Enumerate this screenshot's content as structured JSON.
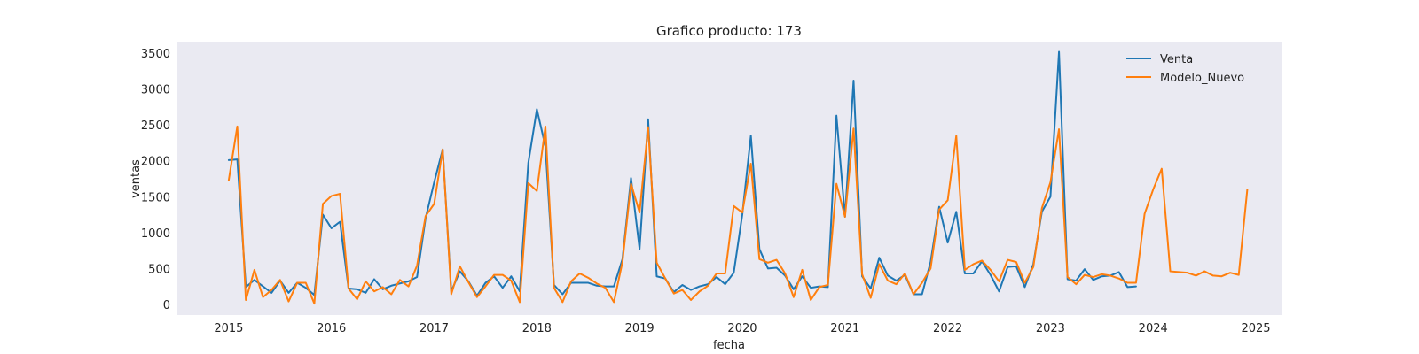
{
  "chart_data": {
    "type": "line",
    "title": "Grafico producto: 173",
    "xlabel": "fecha",
    "ylabel": "ventas",
    "xlim": [
      "2014-07-01",
      "2025-04-01"
    ],
    "ylim": [
      -150,
      3650
    ],
    "x_ticks": [
      "2015",
      "2016",
      "2017",
      "2018",
      "2019",
      "2020",
      "2021",
      "2022",
      "2023",
      "2024",
      "2025"
    ],
    "y_ticks": [
      0,
      500,
      1000,
      1500,
      2000,
      2500,
      3000,
      3500
    ],
    "legend_position": "top-right",
    "grid": false,
    "background": "#eaeaf2",
    "series": [
      {
        "name": "Venta",
        "color": "#1f77b4",
        "start": "2015-01",
        "values": [
          2010,
          2020,
          240,
          340,
          250,
          160,
          330,
          160,
          300,
          230,
          130,
          1250,
          1060,
          1150,
          220,
          210,
          160,
          350,
          210,
          260,
          290,
          320,
          380,
          1200,
          1700,
          2160,
          180,
          460,
          320,
          120,
          300,
          390,
          230,
          390,
          180,
          1970,
          2720,
          2200,
          270,
          140,
          300,
          300,
          300,
          260,
          250,
          250,
          630,
          1760,
          770,
          2580,
          390,
          360,
          170,
          270,
          200,
          250,
          280,
          380,
          280,
          440,
          1250,
          2350,
          770,
          500,
          510,
          400,
          210,
          390,
          230,
          250,
          240,
          2630,
          1220,
          3120,
          390,
          220,
          650,
          400,
          330,
          410,
          140,
          140,
          590,
          1360,
          860,
          1290,
          430,
          430,
          600,
          410,
          180,
          520,
          530,
          240,
          560,
          1290,
          1500,
          3520,
          350,
          330,
          490,
          340,
          390,
          400,
          450,
          240,
          250
        ]
      },
      {
        "name": "Modelo_Nuevo",
        "color": "#ff7f0e",
        "start": "2015-01",
        "values": [
          1730,
          2480,
          60,
          480,
          100,
          200,
          340,
          40,
          300,
          300,
          10,
          1400,
          1510,
          1540,
          220,
          70,
          320,
          180,
          240,
          140,
          340,
          250,
          540,
          1230,
          1400,
          2160,
          140,
          530,
          310,
          100,
          250,
          410,
          410,
          330,
          30,
          1690,
          1580,
          2480,
          230,
          30,
          320,
          430,
          370,
          290,
          230,
          30,
          590,
          1680,
          1280,
          2470,
          580,
          360,
          150,
          200,
          60,
          180,
          260,
          430,
          430,
          1370,
          1280,
          1960,
          630,
          580,
          620,
          430,
          100,
          480,
          60,
          240,
          270,
          1680,
          1220,
          2450,
          420,
          90,
          560,
          330,
          280,
          430,
          140,
          300,
          500,
          1320,
          1450,
          2350,
          480,
          560,
          610,
          480,
          320,
          620,
          590,
          300,
          520,
          1340,
          1700,
          2440,
          380,
          280,
          410,
          380,
          420,
          400,
          360,
          300,
          300,
          1260,
          1600,
          1890,
          460,
          450,
          440,
          400,
          460,
          400,
          390,
          440,
          410,
          1600
        ]
      }
    ]
  }
}
